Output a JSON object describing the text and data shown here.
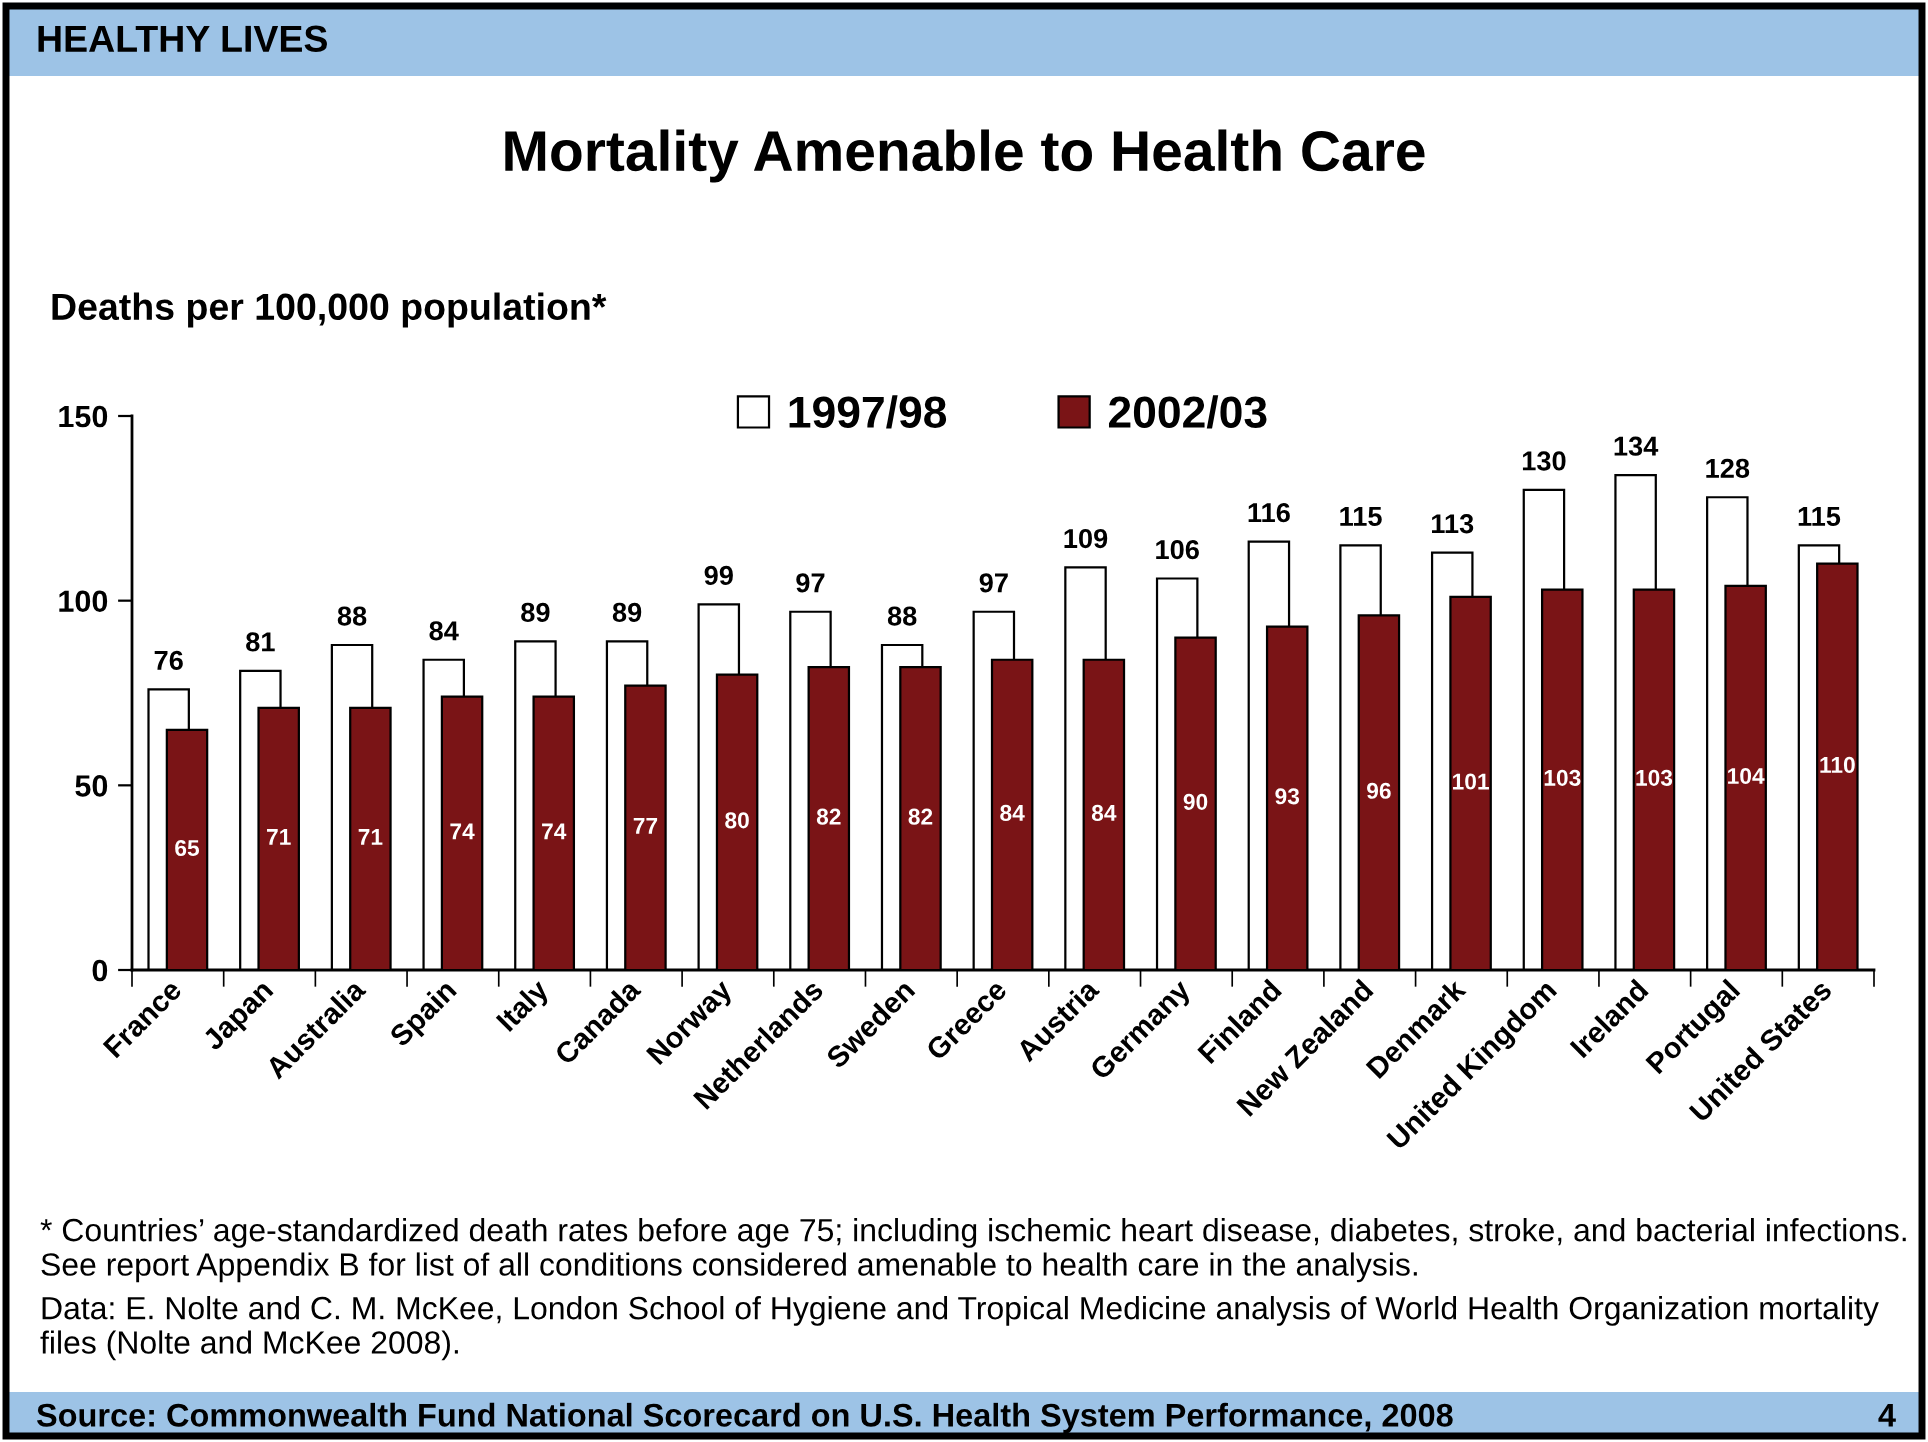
{
  "chart_data": {
    "type": "bar",
    "title": "Mortality Amenable to Health Care",
    "ylabel": "Deaths per 100,000 population*",
    "categories": [
      "France",
      "Japan",
      "Australia",
      "Spain",
      "Italy",
      "Canada",
      "Norway",
      "Netherlands",
      "Sweden",
      "Greece",
      "Austria",
      "Germany",
      "Finland",
      "New Zealand",
      "Denmark",
      "United Kingdom",
      "Ireland",
      "Portugal",
      "United States"
    ],
    "series": [
      {
        "name": "1997/98",
        "color": "#ffffff",
        "values": [
          76,
          81,
          88,
          84,
          89,
          89,
          99,
          97,
          88,
          97,
          109,
          106,
          116,
          115,
          113,
          130,
          134,
          128,
          115
        ]
      },
      {
        "name": "2002/03",
        "color": "#7a1416",
        "values": [
          65,
          71,
          71,
          74,
          74,
          77,
          80,
          82,
          82,
          84,
          84,
          90,
          93,
          96,
          101,
          103,
          103,
          104,
          110
        ]
      }
    ],
    "ylim": [
      0,
      150
    ],
    "yticks": [
      0,
      50,
      100,
      150
    ],
    "data_labels": true,
    "legend": "top",
    "annotations": [
      "HEALTHY LIVES",
      "* Countries’ age-standardized death rates before age 75; including ischemic heart disease, diabetes, stroke, and bacterial infections.\nSee report Appendix B for list of all conditions considered amenable to health care in the analysis.",
      "Data: E. Nolte and C. M. McKee, London School of Hygiene and Tropical Medicine analysis of World Health Organization mortality\nfiles (Nolte and McKee 2008).",
      "Source: Commonwealth Fund National Scorecard on U.S. Health System Performance, 2008",
      "4"
    ]
  }
}
